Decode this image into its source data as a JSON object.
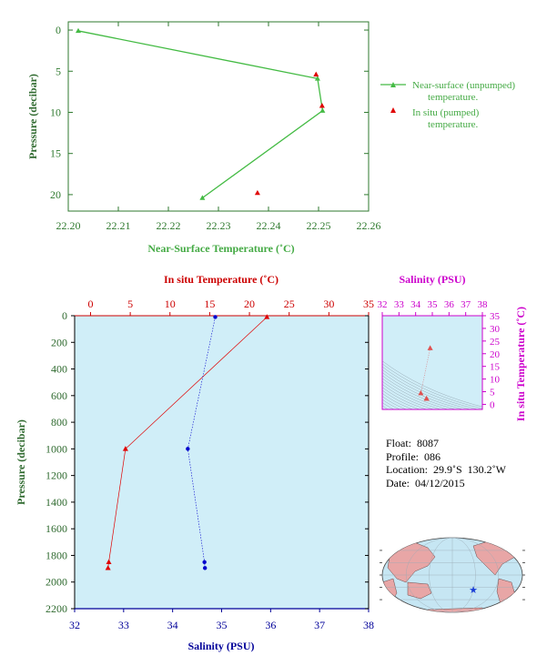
{
  "chart_data": [
    {
      "type": "line",
      "xlabel": "Near-Surface Temperature (˚C)",
      "ylabel": "Pressure (decibar)",
      "xlim": [
        22.2,
        22.26
      ],
      "ylim": [
        22,
        -1
      ],
      "xticks": [
        "22.20",
        "22.21",
        "22.22",
        "22.23",
        "22.24",
        "22.25",
        "22.26"
      ],
      "yticks": [
        "0",
        "5",
        "10",
        "15",
        "20"
      ],
      "colors": {
        "near_surface": "#44bb44",
        "in_situ": "#e00000",
        "axis": "#2f7a2f"
      },
      "legend": {
        "placement": "right",
        "near_surface": [
          "Near-surface (unpumped)",
          "temperature."
        ],
        "in_situ": [
          "In situ (pumped)",
          "temperature."
        ]
      },
      "series": [
        {
          "name": "Near-surface (unpumped) temperature.",
          "marker": "triangle",
          "points": [
            [
              22.202,
              0.1
            ],
            [
              22.2498,
              5.9
            ],
            [
              22.2508,
              9.8
            ],
            [
              22.2268,
              20.4
            ]
          ]
        },
        {
          "name": "In situ (pumped) temperature.",
          "marker": "triangle",
          "line": false,
          "points": [
            [
              22.2495,
              5.4
            ],
            [
              22.2507,
              9.2
            ],
            [
              22.2378,
              19.8
            ]
          ]
        }
      ]
    },
    {
      "type": "line",
      "xlabel_top": "In situ Temperature (˚C)",
      "xlabel_bottom": "Salinity (PSU)",
      "ylabel": "Pressure (decibar)",
      "temp_lim": [
        -2,
        35
      ],
      "sal_lim": [
        32,
        38
      ],
      "ylim": [
        2200,
        0
      ],
      "temp_ticks": [
        "0",
        "5",
        "10",
        "15",
        "20",
        "25",
        "30",
        "35"
      ],
      "sal_ticks": [
        "32",
        "33",
        "34",
        "35",
        "36",
        "37",
        "38"
      ],
      "yticks": [
        "0",
        "200",
        "400",
        "600",
        "800",
        "1000",
        "1200",
        "1400",
        "1600",
        "1800",
        "2000",
        "2200"
      ],
      "colors": {
        "temperature": "#e00000",
        "salinity": "#0000cc",
        "background": "#d0eef8",
        "top_axis": "#cc0000",
        "bottom_axis": "#000099"
      },
      "temperature": [
        [
          22.2,
          10
        ],
        [
          4.4,
          1000
        ],
        [
          2.3,
          1850
        ],
        [
          2.2,
          1895
        ]
      ],
      "salinity": [
        [
          34.87,
          10
        ],
        [
          34.31,
          1000
        ],
        [
          34.65,
          1850
        ],
        [
          34.66,
          1895
        ]
      ]
    },
    {
      "type": "scatter",
      "xlabel": "Salinity (PSU)",
      "ylabel": "In situ Temperature (˚C)",
      "xlim": [
        32,
        38
      ],
      "ylim": [
        -2,
        35
      ],
      "xticks": [
        "32",
        "33",
        "34",
        "35",
        "36",
        "37",
        "38"
      ],
      "yticks": [
        "0",
        "5",
        "10",
        "15",
        "20",
        "25",
        "30",
        "35"
      ],
      "colors": {
        "axis": "#cc00cc",
        "points": "#e05050",
        "background": "#d0eef8",
        "contours": "#8a9aa6"
      },
      "points": [
        [
          34.87,
          22.2
        ],
        [
          34.31,
          4.4
        ],
        [
          34.65,
          2.3
        ],
        [
          34.66,
          2.2
        ]
      ]
    }
  ],
  "info": {
    "float_label": "Float:",
    "float": "8087",
    "profile_label": "Profile:",
    "profile": "086",
    "location_label": "Location:",
    "location": "29.9˚S  130.2˚W",
    "date_label": "Date:",
    "date": "04/12/2015"
  },
  "map": {
    "marker_color": "#1a3fd6",
    "ocean_color": "#c6e6f3",
    "land_color": "#e8a6a6"
  }
}
